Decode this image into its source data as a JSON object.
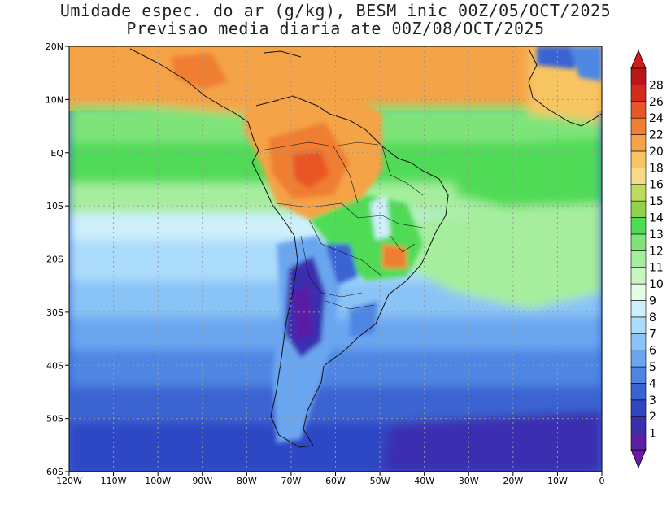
{
  "title": {
    "line1": "Umidade espec. do ar (g/kg), BESM inic 00Z/05/OCT/2025",
    "line2": "Previsao media diaria ate 00Z/08/OCT/2025"
  },
  "axes": {
    "lat_labels": [
      "20N",
      "10N",
      "EQ",
      "10S",
      "20S",
      "30S",
      "40S",
      "50S",
      "60S"
    ],
    "lon_labels": [
      "120W",
      "110W",
      "100W",
      "90W",
      "80W",
      "70W",
      "60W",
      "50W",
      "40W",
      "30W",
      "20W",
      "10W",
      "0"
    ],
    "lat_range": [
      -60,
      20
    ],
    "lon_range": [
      -120,
      0
    ],
    "grid": "dotted"
  },
  "colorbar": {
    "levels": [
      "1",
      "2",
      "3",
      "4",
      "5",
      "6",
      "7",
      "8",
      "9",
      "10",
      "11",
      "12",
      "13",
      "14",
      "15",
      "16",
      "18",
      "20",
      "22",
      "24",
      "26",
      "28"
    ],
    "colors": [
      "#5a1fa5",
      "#3b2fb0",
      "#2f47c5",
      "#3a63d2",
      "#4f86e3",
      "#6aa6f0",
      "#8ac4f7",
      "#acdcfb",
      "#cdf0fb",
      "#e4fbe6",
      "#c7f5c0",
      "#a6ee9e",
      "#7ee47a",
      "#4fdb56",
      "#8fd24b",
      "#bddc5e",
      "#f6dc84",
      "#f8c564",
      "#f5a347",
      "#f07e33",
      "#e85628",
      "#d42a1d",
      "#bb1515"
    ],
    "bottom_arrow_color": "#6a18a8",
    "top_arrow_color": "#cf1d1d"
  },
  "colors": {
    "tropics_orange": "#f5a347",
    "amazon_red": "#ef7e33",
    "tropical_ocean_green": "#4fdb56",
    "subtropical_light": "#acdcfb",
    "midlat_blue": "#4f86e3",
    "south_ocean_indigo": "#3b2fb0"
  }
}
